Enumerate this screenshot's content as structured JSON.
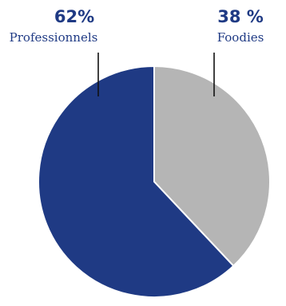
{
  "chart_data": {
    "type": "pie",
    "slices": [
      {
        "label": "Professionnels",
        "percent_label": "62%",
        "value": 62,
        "color": "#1f3a84"
      },
      {
        "label": "Foodies",
        "percent_label": "38 %",
        "value": 38,
        "color": "#b5b5b5"
      }
    ],
    "label_color": "#1f3a84",
    "start": "12 o'clock",
    "direction": "clockwise from Foodies"
  }
}
